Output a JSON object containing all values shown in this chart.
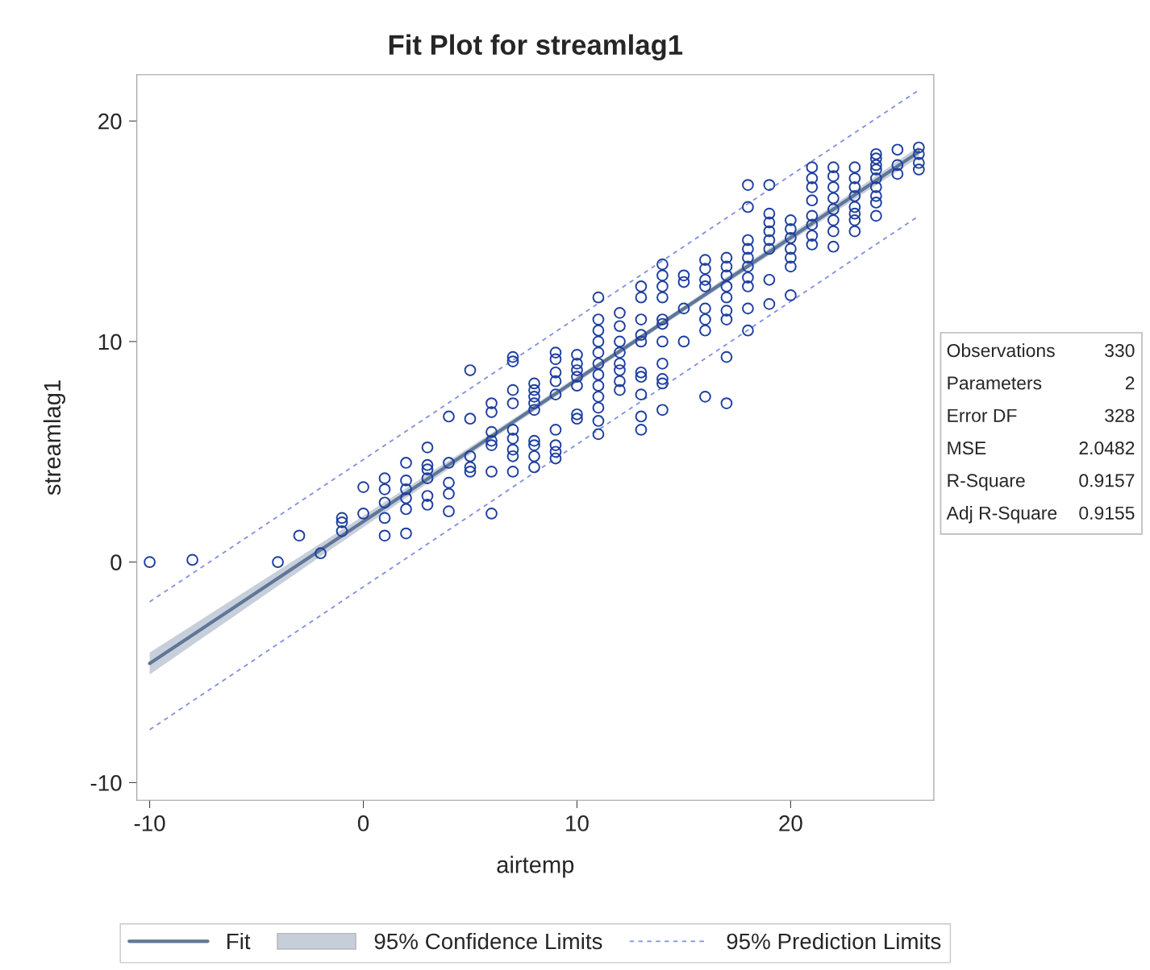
{
  "chart_data": {
    "type": "scatter",
    "title": "Fit Plot for streamlag1",
    "xlabel": "airtemp",
    "ylabel": "streamlag1",
    "xlim": [
      -10.6,
      26.7
    ],
    "ylim": [
      -10.8,
      22.1
    ],
    "xticks": [
      -10,
      0,
      10,
      20
    ],
    "yticks": [
      -10,
      0,
      10,
      20
    ],
    "grid": false,
    "legend": "bottom",
    "series": [
      {
        "type": "line",
        "name": "Fit",
        "color": "#5f7697",
        "line_style": "solid",
        "marker": "none",
        "x": [
          -10,
          -2,
          6,
          14,
          22,
          26
        ],
        "values": [
          -4.6,
          0.55,
          5.7,
          10.85,
          16.0,
          18.6
        ],
        "lower": [
          -5.1,
          0.25,
          5.55,
          10.73,
          15.82,
          18.35
        ],
        "upper": [
          -4.1,
          0.85,
          5.85,
          10.97,
          16.18,
          18.85
        ]
      },
      {
        "type": "line",
        "name": "95% Prediction Limits",
        "color": "#7f8fe0",
        "line_style": "dashed",
        "marker": "none",
        "x": [
          -10,
          26
        ],
        "values": [
          -1.8,
          21.4
        ]
      },
      {
        "type": "line",
        "color": "#7f8fe0",
        "line_style": "dashed",
        "marker": "none",
        "x": [
          -10,
          26
        ],
        "values": [
          -7.6,
          15.7
        ]
      },
      {
        "color": "#1f3fa0",
        "marker": "circle",
        "x": [
          -10,
          -8,
          -4,
          -3,
          -2,
          -1,
          -1,
          -1,
          0,
          0,
          1,
          1,
          1,
          1,
          1,
          2,
          2,
          2,
          2,
          2,
          2,
          3,
          3,
          3,
          3,
          3,
          3,
          4,
          4,
          4,
          4,
          4,
          5,
          5,
          5,
          5,
          5,
          6,
          6,
          6,
          6,
          6,
          6,
          6,
          7,
          7,
          7,
          7,
          7,
          7,
          7,
          7,
          7,
          8,
          8,
          8,
          8,
          8,
          8,
          8,
          8,
          8,
          9,
          9,
          9,
          9,
          9,
          9,
          9,
          9,
          9,
          10,
          10,
          10,
          10,
          10,
          10,
          10,
          11,
          11,
          11,
          11,
          11,
          11,
          11,
          11,
          11,
          11,
          11,
          11,
          12,
          12,
          12,
          12,
          12,
          12,
          12,
          12,
          13,
          13,
          13,
          13,
          13,
          13,
          13,
          13,
          13,
          13,
          14,
          14,
          14,
          14,
          14,
          14,
          14,
          14,
          14,
          14,
          14,
          15,
          15,
          15,
          15,
          16,
          16,
          16,
          16,
          16,
          16,
          16,
          16,
          17,
          17,
          17,
          17,
          17,
          17,
          17,
          17,
          17,
          18,
          18,
          18,
          18,
          18,
          18,
          18,
          18,
          18,
          18,
          19,
          19,
          19,
          19,
          19,
          19,
          19,
          19,
          20,
          20,
          20,
          20,
          20,
          20,
          20,
          21,
          21,
          21,
          21,
          21,
          21,
          21,
          21,
          22,
          22,
          22,
          22,
          22,
          22,
          22,
          22,
          23,
          23,
          23,
          23,
          23,
          23,
          23,
          23,
          24,
          24,
          24,
          24,
          24,
          24,
          24,
          24,
          24,
          25,
          25,
          25,
          26,
          26,
          26,
          26
        ],
        "values": [
          0.0,
          0.1,
          0.0,
          1.2,
          0.4,
          2.0,
          1.8,
          1.4,
          3.4,
          2.2,
          3.8,
          3.3,
          2.7,
          2.0,
          1.2,
          4.5,
          3.7,
          3.3,
          2.9,
          2.4,
          1.3,
          5.2,
          4.4,
          4.2,
          3.8,
          3.0,
          2.6,
          6.6,
          4.5,
          3.6,
          3.1,
          2.3,
          8.7,
          6.5,
          4.8,
          4.3,
          4.1,
          7.2,
          6.8,
          5.9,
          5.5,
          5.3,
          4.1,
          2.2,
          9.3,
          9.1,
          7.8,
          7.2,
          6.0,
          5.6,
          5.1,
          4.8,
          4.1,
          8.1,
          7.8,
          7.5,
          7.2,
          6.9,
          5.5,
          5.3,
          4.8,
          4.3,
          9.5,
          9.2,
          8.6,
          8.2,
          7.6,
          6.0,
          5.3,
          5.0,
          4.7,
          9.4,
          9.0,
          8.7,
          8.4,
          8.0,
          6.7,
          6.5,
          12.0,
          11.0,
          10.5,
          10.0,
          9.5,
          9.0,
          8.5,
          8.0,
          7.5,
          7.0,
          6.4,
          5.8,
          11.3,
          10.7,
          10.0,
          9.5,
          9.0,
          8.7,
          8.2,
          7.8,
          12.5,
          12.0,
          11.0,
          10.3,
          10.0,
          8.6,
          8.4,
          7.6,
          6.6,
          6.0,
          13.5,
          13.0,
          12.5,
          12.0,
          11.0,
          10.8,
          10.0,
          9.0,
          8.3,
          8.1,
          6.9,
          13.0,
          12.7,
          11.5,
          10.0,
          13.7,
          13.3,
          12.8,
          12.5,
          11.5,
          11.0,
          10.5,
          7.5,
          13.8,
          13.4,
          13.0,
          12.5,
          12.0,
          11.4,
          11.0,
          9.3,
          7.2,
          17.1,
          16.1,
          14.6,
          14.2,
          13.8,
          13.4,
          12.9,
          12.5,
          11.5,
          10.5,
          17.1,
          15.8,
          15.4,
          15.0,
          14.6,
          14.2,
          12.8,
          11.7,
          15.5,
          15.1,
          14.7,
          14.2,
          13.8,
          13.4,
          12.1,
          17.9,
          17.4,
          17.0,
          16.4,
          15.7,
          15.3,
          14.8,
          14.4,
          17.9,
          17.5,
          17.0,
          16.5,
          16.0,
          15.5,
          15.0,
          14.3,
          17.9,
          17.4,
          17.0,
          16.6,
          16.1,
          15.8,
          15.5,
          15.0,
          18.5,
          18.3,
          18.0,
          17.8,
          17.4,
          17.0,
          16.6,
          16.3,
          15.7,
          18.7,
          18.0,
          17.6,
          18.8,
          18.5,
          18.1,
          17.8
        ]
      }
    ],
    "annotations": [
      "Observations",
      "330",
      "Parameters",
      "2",
      "Error DF",
      "328",
      "MSE",
      "2.0482",
      "R-Square",
      "0.9157",
      "Adj R-Square",
      "0.9155",
      "95% Confidence Limits"
    ]
  }
}
